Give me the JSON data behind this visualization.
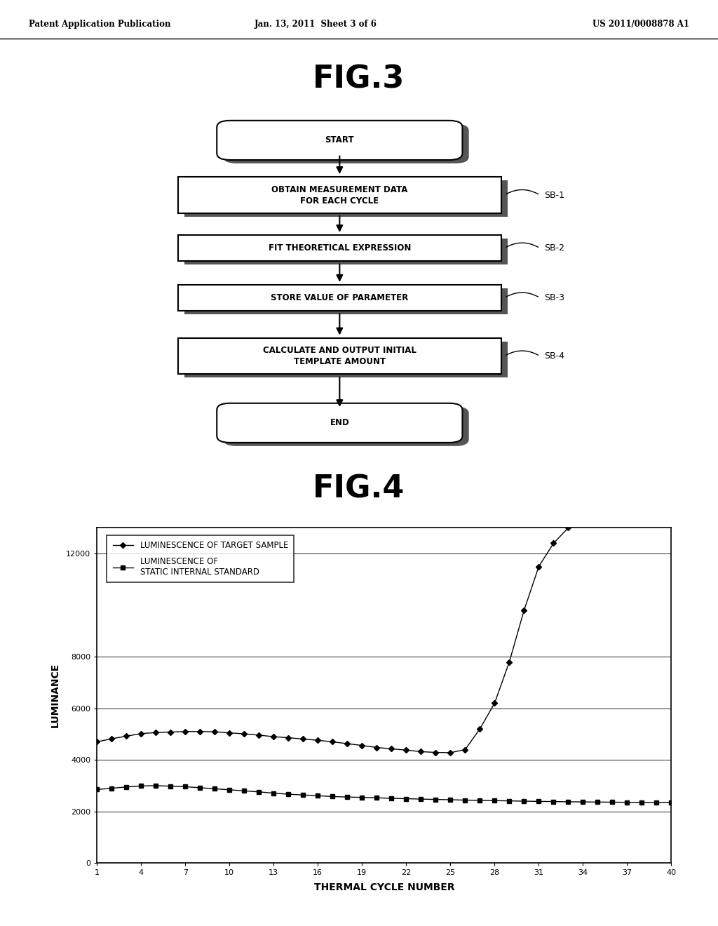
{
  "header_left": "Patent Application Publication",
  "header_mid": "Jan. 13, 2011  Sheet 3 of 6",
  "header_right": "US 2011/0008878 A1",
  "fig3_title": "FIG.3",
  "fig4_title": "FIG.4",
  "flowchart_nodes": [
    {
      "label": "START",
      "type": "rounded",
      "tag": null
    },
    {
      "label": "OBTAIN MEASUREMENT DATA\nFOR EACH CYCLE",
      "type": "rect",
      "tag": "SB-1"
    },
    {
      "label": "FIT THEORETICAL EXPRESSION",
      "type": "rect",
      "tag": "SB-2"
    },
    {
      "label": "STORE VALUE OF PARAMETER",
      "type": "rect",
      "tag": "SB-3"
    },
    {
      "label": "CALCULATE AND OUTPUT INITIAL\nTEMPLATE AMOUNT",
      "type": "rect",
      "tag": "SB-4"
    },
    {
      "label": "END",
      "type": "rounded",
      "tag": null
    }
  ],
  "graph": {
    "xlabel": "THERMAL CYCLE NUMBER",
    "ylabel": "LUMINANCE",
    "ytick_labels": [
      "0",
      "2000",
      "4000",
      "6000",
      "8000",
      "12000"
    ],
    "ytick_positions": [
      0,
      2000,
      4000,
      6000,
      8000,
      12000
    ],
    "xticks": [
      1,
      4,
      7,
      10,
      13,
      16,
      19,
      22,
      25,
      28,
      31,
      34,
      37,
      40
    ],
    "ylim": [
      0,
      13000
    ],
    "xlim": [
      1,
      40
    ],
    "series1_label": "LUMINESCENCE OF TARGET SAMPLE",
    "series2_label": "LUMINESCENCE OF\nSTATIC INTERNAL STANDARD",
    "series1_marker": "D",
    "series2_marker": "s",
    "series1_x": [
      1,
      2,
      3,
      4,
      5,
      6,
      7,
      8,
      9,
      10,
      11,
      12,
      13,
      14,
      15,
      16,
      17,
      18,
      19,
      20,
      21,
      22,
      23,
      24,
      25,
      26,
      27,
      28,
      29,
      30,
      31,
      32,
      33,
      34,
      35,
      36,
      37,
      38,
      39,
      40
    ],
    "series1_y": [
      4700,
      4820,
      4920,
      5020,
      5060,
      5080,
      5100,
      5100,
      5090,
      5050,
      5010,
      4960,
      4900,
      4860,
      4810,
      4760,
      4700,
      4630,
      4560,
      4480,
      4430,
      4380,
      4320,
      4290,
      4280,
      4400,
      5200,
      6200,
      7800,
      9800,
      11500,
      12400,
      13000,
      13300,
      13500,
      13600,
      13600,
      13700,
      13700,
      13700
    ],
    "series2_x": [
      1,
      2,
      3,
      4,
      5,
      6,
      7,
      8,
      9,
      10,
      11,
      12,
      13,
      14,
      15,
      16,
      17,
      18,
      19,
      20,
      21,
      22,
      23,
      24,
      25,
      26,
      27,
      28,
      29,
      30,
      31,
      32,
      33,
      34,
      35,
      36,
      37,
      38,
      39,
      40
    ],
    "series2_y": [
      2850,
      2900,
      2950,
      2990,
      3000,
      2980,
      2960,
      2920,
      2880,
      2840,
      2800,
      2760,
      2710,
      2670,
      2640,
      2610,
      2580,
      2560,
      2545,
      2530,
      2510,
      2495,
      2480,
      2465,
      2455,
      2440,
      2430,
      2420,
      2410,
      2400,
      2390,
      2385,
      2375,
      2370,
      2365,
      2360,
      2355,
      2355,
      2355,
      2355
    ]
  },
  "bg_color": "#ffffff",
  "text_color": "#000000",
  "shadow_color": "#555555"
}
